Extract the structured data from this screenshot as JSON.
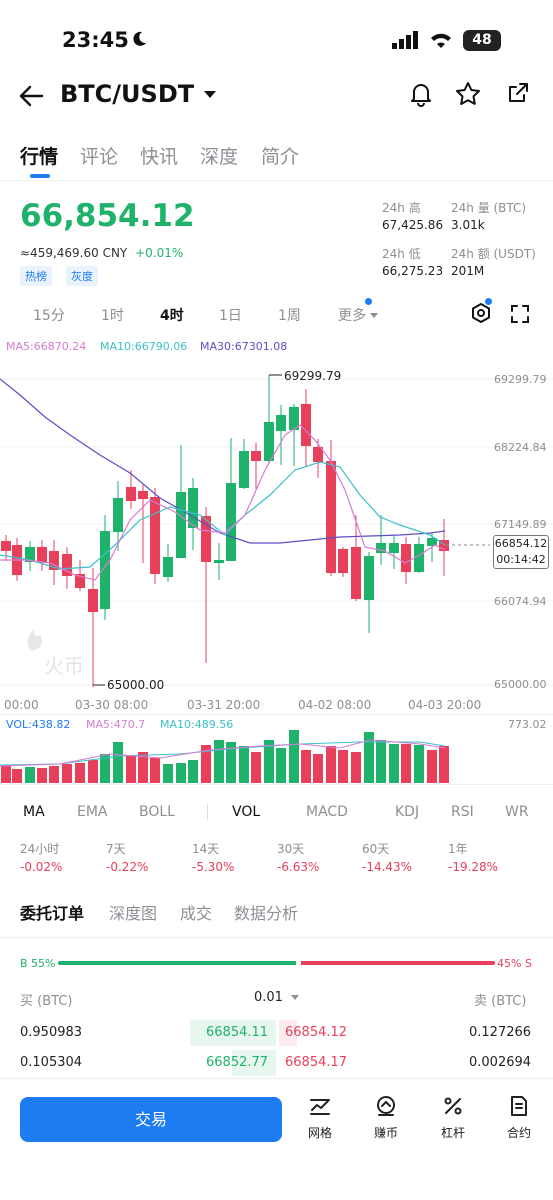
{
  "status": {
    "time": "23:45",
    "battery": "48"
  },
  "header": {
    "pair": "BTC/USDT"
  },
  "tabs": [
    "行情",
    "评论",
    "快讯",
    "深度",
    "简介"
  ],
  "price": {
    "last": "66,854.12",
    "cny": "≈459,469.60 CNY",
    "change": "+0.01%",
    "tags": [
      "热榜",
      "灰度"
    ],
    "high_label": "24h 高",
    "high": "67,425.86",
    "vol_btc_label": "24h 量 (BTC)",
    "vol_btc": "3.01k",
    "low_label": "24h 低",
    "low": "66,275.23",
    "amt_label": "24h 额 (USDT)",
    "amt": "201M"
  },
  "timeframes": [
    "15分",
    "1时",
    "4时",
    "1日",
    "1周",
    "更多"
  ],
  "ma_legend": {
    "ma5": "MA5:66870.24",
    "ma10": "MA10:66790.06",
    "ma30": "MA30:67301.08"
  },
  "chart": {
    "y_ticks": [
      "69299.79",
      "68224.84",
      "67149.89",
      "66074.94",
      "65000.00"
    ],
    "high_label": "69299.79",
    "low_label": "65000.00",
    "current_price": "66854.12",
    "countdown": "00:14:42",
    "x_labels": [
      "00:00",
      "03-30 08:00",
      "03-31 20:00",
      "04-02 08:00",
      "04-03 20:00"
    ],
    "watermark": "火币"
  },
  "volume": {
    "vol": "VOL:438.82",
    "ma5": "MA5:470.7",
    "ma10": "MA10:489.56",
    "max": "773.02"
  },
  "indicators": [
    "MA",
    "EMA",
    "BOLL",
    "VOL",
    "MACD",
    "KDJ",
    "RSI",
    "WR"
  ],
  "performance": [
    {
      "label": "24小时",
      "value": "-0.02%"
    },
    {
      "label": "7天",
      "value": "-0.22%"
    },
    {
      "label": "14天",
      "value": "-5.30%"
    },
    {
      "label": "30天",
      "value": "-6.63%"
    },
    {
      "label": "60天",
      "value": "-14.43%"
    },
    {
      "label": "1年",
      "value": "-19.28%"
    }
  ],
  "orderbook_tabs": [
    "委托订单",
    "深度图",
    "成交",
    "数据分析"
  ],
  "ratio": {
    "buy": "B 55%",
    "sell": "45% S",
    "buy_fraction": 0.55
  },
  "orderbook": {
    "buy_header": "买 (BTC)",
    "precision": "0.01",
    "sell_header": "卖 (BTC)",
    "rows": [
      {
        "buy_qty": "0.950983",
        "bid": "66854.11",
        "ask": "66854.12",
        "sell_qty": "0.127266"
      },
      {
        "buy_qty": "0.105304",
        "bid": "66852.77",
        "ask": "66854.17",
        "sell_qty": "0.002694"
      }
    ]
  },
  "bottom": {
    "trade": "交易",
    "tools": [
      "网格",
      "赚币",
      "杠杆",
      "合约"
    ]
  },
  "colors": {
    "up": "#1fb26b",
    "down": "#e8405b",
    "ma5": "#d77bd3",
    "ma10": "#3bc0c9",
    "ma30": "#5b4fc7",
    "primary": "#1e7cf2"
  }
}
